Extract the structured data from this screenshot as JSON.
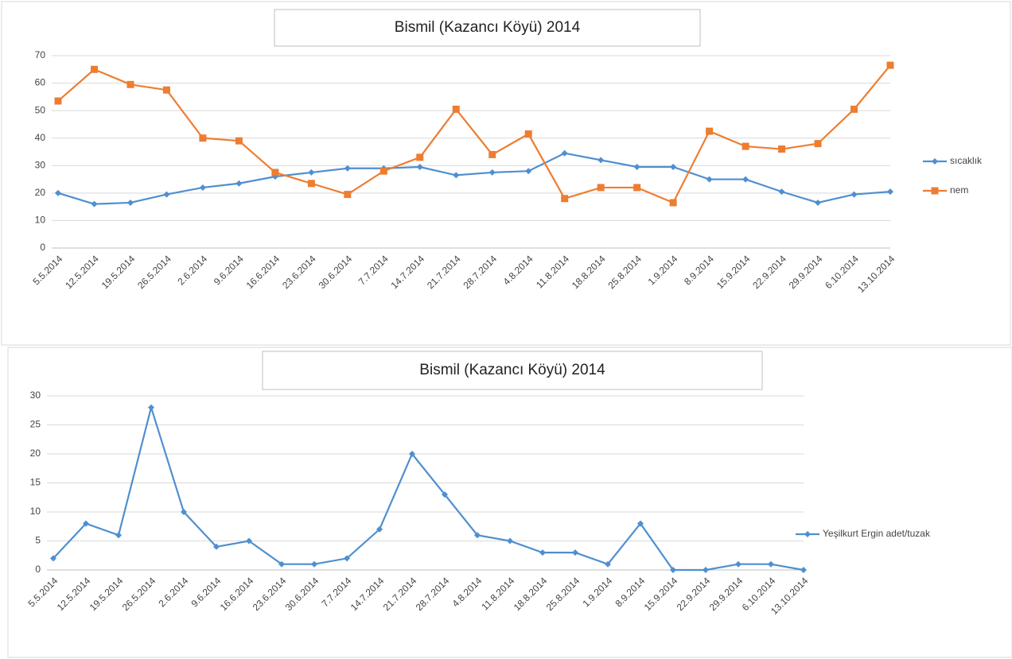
{
  "chart_data": [
    {
      "type": "line",
      "title": "Bismil (Kazancı Köyü) 2014",
      "categories": [
        "5.5.2014",
        "12.5.2014",
        "19.5.2014",
        "26.5.2014",
        "2.6.2014",
        "9.6.2014",
        "16.6.2014",
        "23.6.2014",
        "30.6.2014",
        "7.7.2014",
        "14.7.2014",
        "21.7.2014",
        "28.7.2014",
        "4.8.2014",
        "11.8.2014",
        "18.8.2014",
        "25.8.2014",
        "1.9.2014",
        "8.9.2014",
        "15.9.2014",
        "22.9.2014",
        "29.9.2014",
        "6.10.2014",
        "13.10.2014"
      ],
      "series": [
        {
          "name": "sıcaklık",
          "color": "#4f8fcf",
          "marker": "diamond",
          "values": [
            20,
            16,
            16.5,
            19.5,
            22,
            23.5,
            26,
            27.5,
            29,
            29,
            29.5,
            26.5,
            27.5,
            28,
            34.5,
            32,
            29.5,
            29.5,
            25,
            25,
            20.5,
            16.5,
            19.5,
            20.5
          ]
        },
        {
          "name": "nem",
          "color": "#ed7d31",
          "marker": "square",
          "values": [
            53.5,
            65,
            59.5,
            57.5,
            40,
            39,
            27.5,
            23.5,
            19.5,
            28,
            33,
            50.5,
            34,
            41.5,
            18,
            22,
            22,
            16.5,
            42.5,
            37,
            36,
            38,
            50.5,
            66.5
          ]
        }
      ],
      "ylim": [
        0,
        70
      ],
      "yticks": [
        0,
        10,
        20,
        30,
        40,
        50,
        60,
        70
      ],
      "grid": true,
      "legend": "right"
    },
    {
      "type": "line",
      "title": "Bismil (Kazancı Köyü) 2014",
      "categories": [
        "5.5.2014",
        "12.5.2014",
        "19.5.2014",
        "26.5.2014",
        "2.6.2014",
        "9.6.2014",
        "16.6.2014",
        "23.6.2014",
        "30.6.2014",
        "7.7.2014",
        "14.7.2014",
        "21.7.2014",
        "28.7.2014",
        "4.8.2014",
        "11.8.2014",
        "18.8.2014",
        "25.8.2014",
        "1.9.2014",
        "8.9.2014",
        "15.9.2014",
        "22.9.2014",
        "29.9.2014",
        "6.10.2014",
        "13.10.2014"
      ],
      "series": [
        {
          "name": "Yeşilkurt Ergin adet/tuzak",
          "color": "#4f8fcf",
          "marker": "diamond",
          "values": [
            2,
            8,
            6,
            28,
            10,
            4,
            5,
            1,
            1,
            2,
            7,
            20,
            13,
            6,
            5,
            3,
            3,
            1,
            8,
            0,
            0,
            1,
            1,
            0
          ]
        }
      ],
      "ylim": [
        0,
        30
      ],
      "yticks": [
        0,
        5,
        10,
        15,
        20,
        25,
        30
      ],
      "grid": true,
      "legend": "right"
    }
  ]
}
